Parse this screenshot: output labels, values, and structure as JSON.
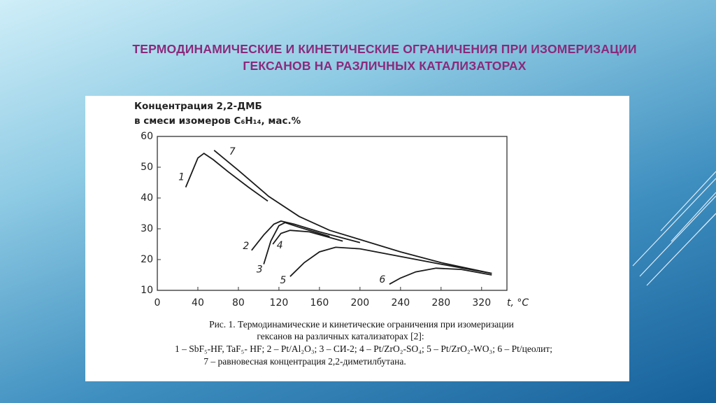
{
  "slide_title": [
    "ТЕРМОДИНАМИЧЕСКИЕ И КИНЕТИЧЕСКИЕ ОГРАНИЧЕНИЯ ПРИ ИЗОМЕРИЗАЦИИ",
    "ГЕКСАНОВ НА РАЗЛИЧНЫХ КАТАЛИЗАТОРАХ"
  ],
  "chart_data": {
    "type": "line",
    "y_label": [
      "Концентрация 2,2-ДМБ",
      "в смеси изомеров C₆H₁₄, мас.%"
    ],
    "x_label": "t, °C",
    "xlim": [
      0,
      345
    ],
    "ylim": [
      10,
      60
    ],
    "xticks": [
      0,
      40,
      80,
      120,
      160,
      200,
      240,
      280,
      320
    ],
    "yticks": [
      10,
      20,
      30,
      40,
      50,
      60
    ],
    "color": "#1a1a1a",
    "series": [
      {
        "name": "1",
        "x": [
          28,
          35,
          40,
          46,
          55,
          70,
          90,
          109
        ],
        "values": [
          43.5,
          49,
          53,
          54.5,
          52.5,
          48.5,
          43.5,
          39
        ]
      },
      {
        "name": "2",
        "x": [
          93,
          105,
          115,
          122,
          135,
          160,
          200
        ],
        "values": [
          23,
          28,
          31.5,
          32.5,
          31.5,
          29,
          25.5
        ]
      },
      {
        "name": "3",
        "x": [
          105,
          112,
          120,
          126,
          140,
          170
        ],
        "values": [
          18.5,
          26,
          31,
          32,
          30.5,
          27.5
        ]
      },
      {
        "name": "4",
        "x": [
          114,
          122,
          131,
          150,
          183
        ],
        "values": [
          25,
          28.5,
          29.5,
          29,
          26
        ]
      },
      {
        "name": "5",
        "x": [
          131,
          145,
          160,
          176,
          200,
          240,
          280,
          330
        ],
        "values": [
          14.5,
          19,
          22.5,
          24,
          23.5,
          21,
          18.5,
          15.5
        ]
      },
      {
        "name": "6",
        "x": [
          229,
          240,
          255,
          275,
          300,
          330
        ],
        "values": [
          12,
          14,
          16,
          17.2,
          16.8,
          15
        ]
      },
      {
        "name": "7",
        "x": [
          56,
          80,
          110,
          140,
          170,
          200,
          240,
          280,
          330
        ],
        "values": [
          55.5,
          49,
          40.5,
          34,
          29.5,
          26.5,
          22.5,
          19,
          15.5
        ]
      }
    ],
    "caption": [
      "Рис. 1. Термодинамические и кинетические ограничения при изомеризации",
      "гексанов на различных катализаторах [2]:",
      "1 – SbF₅-HF, TaF₅- HF; 2 – Pt/Al₂O₃; 3 – СИ-2; 4 – Pt/ZrO₂-SO₄; 5 – Pt/ZrO₂-WO₃; 6 – Pt/цеолит;",
      "7 – равновесная концентрация 2,2-диметилбутана."
    ]
  }
}
